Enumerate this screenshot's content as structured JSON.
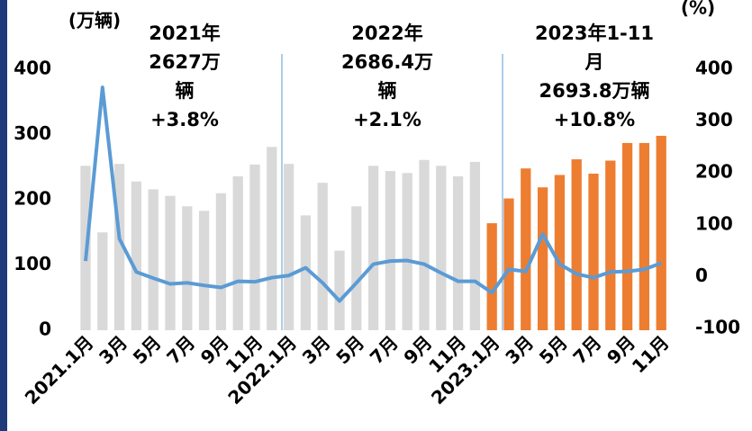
{
  "chart_data": {
    "type": "combo",
    "y_unit": "(万辆)",
    "y2_unit": "(%)",
    "categories": [
      "2021.1月",
      null,
      "3月",
      null,
      "5月",
      null,
      "7月",
      null,
      "9月",
      null,
      "11月",
      null,
      "2022.1月",
      null,
      "3月",
      null,
      "5月",
      null,
      "7月",
      null,
      "9月",
      null,
      "11月",
      null,
      "2023.1月",
      null,
      "3月",
      null,
      "5月",
      null,
      "7月",
      null,
      "9月",
      null,
      "11月"
    ],
    "series": [
      {
        "type": "bar",
        "values": [
          252,
          150,
          255,
          228,
          216,
          206,
          190,
          183,
          210,
          236,
          254,
          281,
          255,
          176,
          226,
          122,
          190,
          252,
          244,
          241,
          261,
          252,
          236,
          258,
          164,
          202,
          248,
          219,
          238,
          262,
          240,
          260,
          287,
          287,
          298
        ],
        "colors": [
          "#d9d9d9",
          "#d9d9d9",
          "#d9d9d9",
          "#d9d9d9",
          "#d9d9d9",
          "#d9d9d9",
          "#d9d9d9",
          "#d9d9d9",
          "#d9d9d9",
          "#d9d9d9",
          "#d9d9d9",
          "#d9d9d9",
          "#d9d9d9",
          "#d9d9d9",
          "#d9d9d9",
          "#d9d9d9",
          "#d9d9d9",
          "#d9d9d9",
          "#d9d9d9",
          "#d9d9d9",
          "#d9d9d9",
          "#d9d9d9",
          "#d9d9d9",
          "#d9d9d9",
          "#ed7d31",
          "#ed7d31",
          "#ed7d31",
          "#ed7d31",
          "#ed7d31",
          "#ed7d31",
          "#ed7d31",
          "#ed7d31",
          "#ed7d31",
          "#ed7d31",
          "#ed7d31"
        ]
      },
      {
        "type": "line",
        "axis": "y2",
        "color": "#5b9bd5",
        "values": [
          30,
          365,
          73,
          9,
          -3,
          -14,
          -12,
          -17,
          -21,
          -9,
          -10,
          -2,
          2,
          17,
          -12,
          -47,
          -12,
          24,
          30,
          31,
          24,
          7,
          -9,
          -9,
          -31,
          14,
          10,
          82,
          24,
          5,
          -2,
          9,
          10,
          14,
          26
        ]
      }
    ],
    "ylim": [
      0,
      400
    ],
    "yticks": [
      0,
      100,
      200,
      300,
      400
    ],
    "y2lim": [
      -100,
      400
    ],
    "y2ticks": [
      -100,
      0,
      100,
      200,
      300,
      400
    ],
    "annotations": [
      [
        "2021年",
        "2627万",
        "辆",
        "+3.8%"
      ],
      [
        "2022年",
        "2686.4万",
        "辆",
        "+2.1%"
      ],
      [
        "2023年1-11",
        "月",
        "2693.8万辆",
        "+10.8%"
      ]
    ]
  }
}
